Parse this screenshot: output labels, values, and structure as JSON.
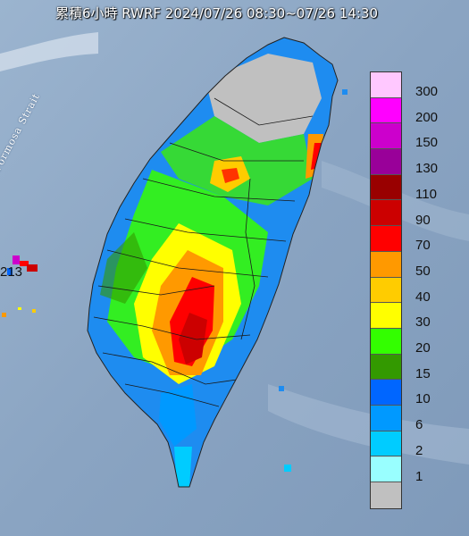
{
  "title": "累積6小時 RWRF 2024/07/26 08:30~07/26 14:30",
  "strait_label": "Formosa Strait",
  "max_value": "213",
  "legend": [
    {
      "label": "300",
      "color": "#ffc8ff"
    },
    {
      "label": "200",
      "color": "#ff00ff"
    },
    {
      "label": "150",
      "color": "#cc00cc"
    },
    {
      "label": "130",
      "color": "#990099"
    },
    {
      "label": "110",
      "color": "#990000"
    },
    {
      "label": "90",
      "color": "#cc0000"
    },
    {
      "label": "70",
      "color": "#ff0000"
    },
    {
      "label": "50",
      "color": "#ff9900"
    },
    {
      "label": "40",
      "color": "#ffcc00"
    },
    {
      "label": "30",
      "color": "#ffff00"
    },
    {
      "label": "20",
      "color": "#33ff00"
    },
    {
      "label": "15",
      "color": "#339900"
    },
    {
      "label": "10",
      "color": "#0066ff"
    },
    {
      "label": "6",
      "color": "#0099ff"
    },
    {
      "label": "2",
      "color": "#00ccff"
    },
    {
      "label": "1",
      "color": "#99ffff"
    },
    {
      "label": "",
      "color": "#c0c0c0"
    }
  ]
}
